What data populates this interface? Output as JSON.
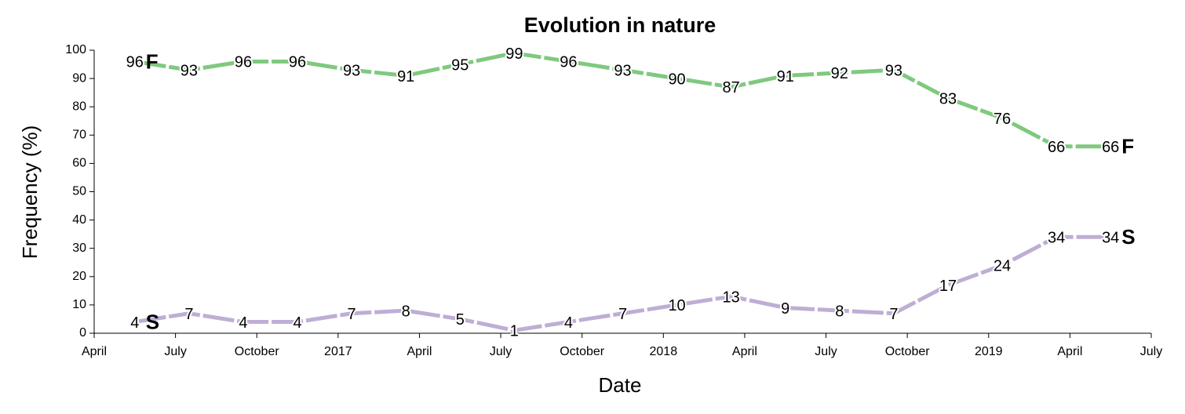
{
  "chart_data": {
    "type": "line",
    "title": "Evolution in nature",
    "xlabel": "Date",
    "ylabel": "Frequency (%)",
    "x": [
      "2016-05",
      "2016-07",
      "2016-09",
      "2016-11",
      "2017-01",
      "2017-03",
      "2017-05",
      "2017-07",
      "2017-09",
      "2017-11",
      "2018-01",
      "2018-03",
      "2018-05",
      "2018-07",
      "2018-09",
      "2018-11",
      "2019-01",
      "2019-03",
      "2019-05"
    ],
    "series": [
      {
        "name": "F",
        "color": "#7fc97f",
        "values": [
          96,
          93,
          96,
          96,
          93,
          91,
          95,
          99,
          96,
          93,
          90,
          87,
          91,
          92,
          93,
          83,
          76,
          66,
          66
        ]
      },
      {
        "name": "S",
        "color": "#beaed4",
        "values": [
          4,
          7,
          4,
          4,
          7,
          8,
          5,
          1,
          4,
          7,
          10,
          13,
          9,
          8,
          7,
          17,
          24,
          34,
          34
        ]
      }
    ],
    "xlim": [
      "2016-04",
      "2019-07"
    ],
    "xticks": [
      {
        "value": "2016-04",
        "label": "April"
      },
      {
        "value": "2016-07",
        "label": "July"
      },
      {
        "value": "2016-10",
        "label": "October"
      },
      {
        "value": "2017-01",
        "label": "2017"
      },
      {
        "value": "2017-04",
        "label": "April"
      },
      {
        "value": "2017-07",
        "label": "July"
      },
      {
        "value": "2017-10",
        "label": "October"
      },
      {
        "value": "2018-01",
        "label": "2018"
      },
      {
        "value": "2018-04",
        "label": "April"
      },
      {
        "value": "2018-07",
        "label": "July"
      },
      {
        "value": "2018-10",
        "label": "October"
      },
      {
        "value": "2019-01",
        "label": "2019"
      },
      {
        "value": "2019-04",
        "label": "April"
      },
      {
        "value": "2019-07",
        "label": "July"
      }
    ],
    "ylim": [
      0,
      100
    ],
    "yticks": [
      0,
      10,
      20,
      30,
      40,
      50,
      60,
      70,
      80,
      90,
      100
    ]
  }
}
